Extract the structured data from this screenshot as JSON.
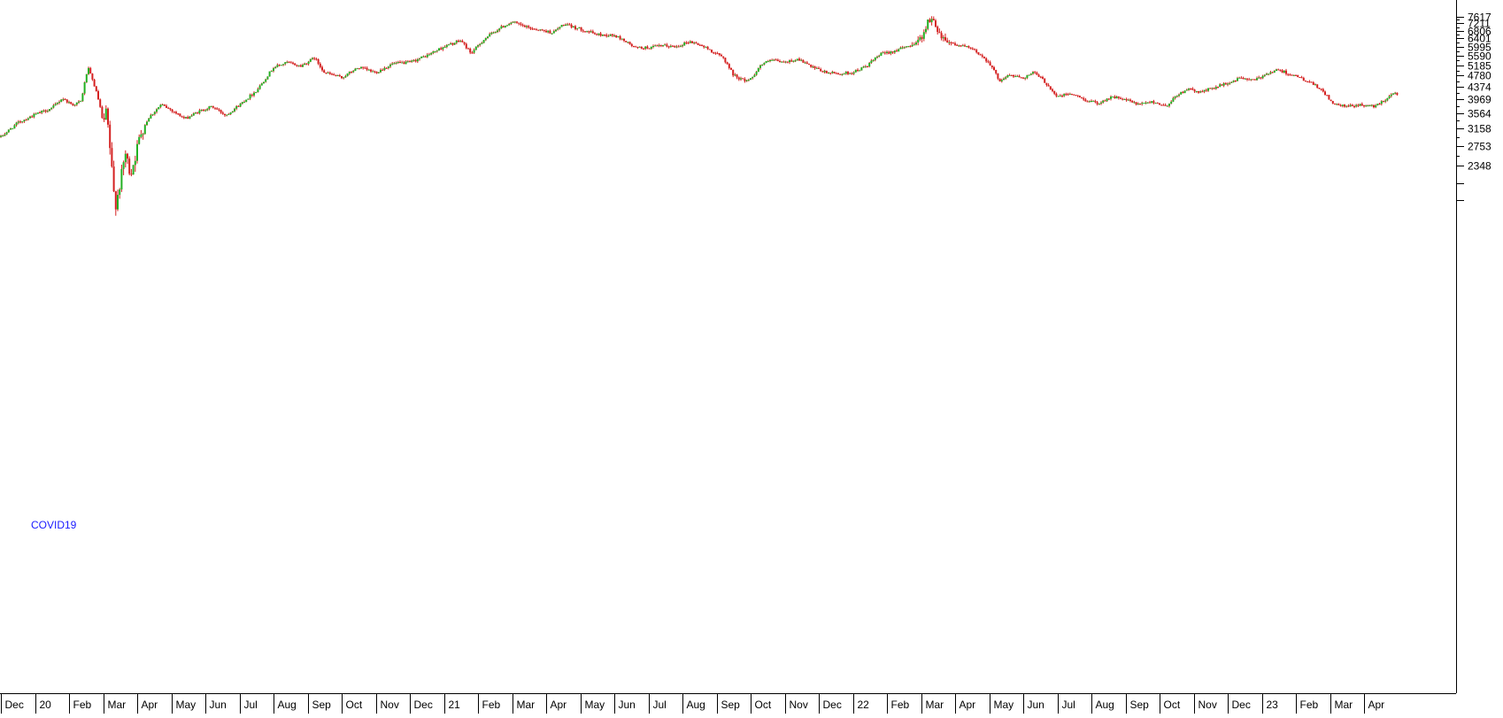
{
  "chart_data": {
    "type": "candlestick",
    "x_axis_labels": [
      "Dec",
      "20",
      "Feb",
      "Mar",
      "Apr",
      "May",
      "Jun",
      "Jul",
      "Aug",
      "Sep",
      "Oct",
      "Nov",
      "Dec",
      "21",
      "Feb",
      "Mar",
      "Apr",
      "May",
      "Jun",
      "Jul",
      "Aug",
      "Sep",
      "Oct",
      "Nov",
      "Dec",
      "22",
      "Feb",
      "Mar",
      "Apr",
      "May",
      "Jun",
      "Jul",
      "Aug",
      "Sep",
      "Oct",
      "Nov",
      "Dec",
      "23",
      "Feb",
      "Mar",
      "Apr"
    ],
    "y_ticks": [
      7617,
      7211,
      6806,
      6401,
      5995,
      5590,
      5185,
      4780,
      4374,
      3969,
      3564,
      3158,
      2753,
      2348
    ],
    "annotation": "COVID19",
    "colors": {
      "up": "#22b022",
      "down": "#d42020",
      "axis": "#000000",
      "annotation": "#1a1aff"
    },
    "series": [
      {
        "t": 0,
        "v": 2950
      },
      {
        "t": 0.5,
        "v": 3300
      },
      {
        "t": 1,
        "v": 3520
      },
      {
        "t": 1.5,
        "v": 3700
      },
      {
        "t": 1.8,
        "v": 4000
      },
      {
        "t": 2.1,
        "v": 3800
      },
      {
        "t": 2.35,
        "v": 3900
      },
      {
        "t": 2.55,
        "v": 5100
      },
      {
        "t": 2.75,
        "v": 4400
      },
      {
        "t": 2.9,
        "v": 3800
      },
      {
        "t": 3.0,
        "v": 3250
      },
      {
        "t": 3.1,
        "v": 3600
      },
      {
        "t": 3.2,
        "v": 2700
      },
      {
        "t": 3.35,
        "v": 1700
      },
      {
        "t": 3.5,
        "v": 2050
      },
      {
        "t": 3.65,
        "v": 2600
      },
      {
        "t": 3.8,
        "v": 2200
      },
      {
        "t": 3.95,
        "v": 2550
      },
      {
        "t": 4.1,
        "v": 3050
      },
      {
        "t": 4.35,
        "v": 3450
      },
      {
        "t": 4.7,
        "v": 3800
      },
      {
        "t": 5.0,
        "v": 3650
      },
      {
        "t": 5.4,
        "v": 3400
      },
      {
        "t": 5.8,
        "v": 3600
      },
      {
        "t": 6.2,
        "v": 3750
      },
      {
        "t": 6.6,
        "v": 3500
      },
      {
        "t": 7.0,
        "v": 3800
      },
      {
        "t": 7.5,
        "v": 4250
      },
      {
        "t": 8.0,
        "v": 5100
      },
      {
        "t": 8.4,
        "v": 5300
      },
      {
        "t": 8.8,
        "v": 5150
      },
      {
        "t": 9.2,
        "v": 5500
      },
      {
        "t": 9.5,
        "v": 4900
      },
      {
        "t": 10.0,
        "v": 4700
      },
      {
        "t": 10.5,
        "v": 5100
      },
      {
        "t": 11.0,
        "v": 4900
      },
      {
        "t": 11.5,
        "v": 5250
      },
      {
        "t": 12.0,
        "v": 5300
      },
      {
        "t": 12.5,
        "v": 5600
      },
      {
        "t": 13.0,
        "v": 6000
      },
      {
        "t": 13.5,
        "v": 6300
      },
      {
        "t": 13.8,
        "v": 5700
      },
      {
        "t": 14.2,
        "v": 6400
      },
      {
        "t": 14.6,
        "v": 6900
      },
      {
        "t": 15.0,
        "v": 7300
      },
      {
        "t": 15.4,
        "v": 7000
      },
      {
        "t": 15.8,
        "v": 6850
      },
      {
        "t": 16.2,
        "v": 6700
      },
      {
        "t": 16.5,
        "v": 7150
      },
      {
        "t": 17.0,
        "v": 6900
      },
      {
        "t": 17.5,
        "v": 6600
      },
      {
        "t": 18.0,
        "v": 6550
      },
      {
        "t": 18.3,
        "v": 6300
      },
      {
        "t": 18.6,
        "v": 5950
      },
      {
        "t": 19.0,
        "v": 5950
      },
      {
        "t": 19.4,
        "v": 6050
      },
      {
        "t": 19.8,
        "v": 6000
      },
      {
        "t": 20.2,
        "v": 6250
      },
      {
        "t": 20.5,
        "v": 6100
      },
      {
        "t": 20.8,
        "v": 5850
      },
      {
        "t": 21.2,
        "v": 5500
      },
      {
        "t": 21.5,
        "v": 4800
      },
      {
        "t": 21.8,
        "v": 4600
      },
      {
        "t": 22.0,
        "v": 4650
      },
      {
        "t": 22.3,
        "v": 5200
      },
      {
        "t": 22.6,
        "v": 5400
      },
      {
        "t": 23.0,
        "v": 5300
      },
      {
        "t": 23.4,
        "v": 5450
      },
      {
        "t": 23.8,
        "v": 5100
      },
      {
        "t": 24.2,
        "v": 4900
      },
      {
        "t": 24.6,
        "v": 4850
      },
      {
        "t": 25.0,
        "v": 4900
      },
      {
        "t": 25.4,
        "v": 5150
      },
      {
        "t": 25.8,
        "v": 5650
      },
      {
        "t": 26.2,
        "v": 5800
      },
      {
        "t": 26.6,
        "v": 6000
      },
      {
        "t": 27.0,
        "v": 6400
      },
      {
        "t": 27.2,
        "v": 7300
      },
      {
        "t": 27.35,
        "v": 7400
      },
      {
        "t": 27.6,
        "v": 6500
      },
      {
        "t": 28.0,
        "v": 6100
      },
      {
        "t": 28.3,
        "v": 6000
      },
      {
        "t": 28.6,
        "v": 5800
      },
      {
        "t": 29.0,
        "v": 5300
      },
      {
        "t": 29.3,
        "v": 4600
      },
      {
        "t": 29.6,
        "v": 4800
      },
      {
        "t": 30.0,
        "v": 4700
      },
      {
        "t": 30.3,
        "v": 4900
      },
      {
        "t": 30.6,
        "v": 4600
      },
      {
        "t": 31.0,
        "v": 4050
      },
      {
        "t": 31.4,
        "v": 4150
      },
      {
        "t": 31.8,
        "v": 3950
      },
      {
        "t": 32.2,
        "v": 3850
      },
      {
        "t": 32.6,
        "v": 4050
      },
      {
        "t": 33.0,
        "v": 3950
      },
      {
        "t": 33.4,
        "v": 3800
      },
      {
        "t": 33.8,
        "v": 3900
      },
      {
        "t": 34.2,
        "v": 3750
      },
      {
        "t": 34.4,
        "v": 4000
      },
      {
        "t": 34.8,
        "v": 4300
      },
      {
        "t": 35.2,
        "v": 4200
      },
      {
        "t": 35.6,
        "v": 4350
      },
      {
        "t": 36.0,
        "v": 4500
      },
      {
        "t": 36.4,
        "v": 4700
      },
      {
        "t": 36.8,
        "v": 4600
      },
      {
        "t": 37.2,
        "v": 4900
      },
      {
        "t": 37.5,
        "v": 5000
      },
      {
        "t": 37.8,
        "v": 4850
      },
      {
        "t": 38.2,
        "v": 4650
      },
      {
        "t": 38.6,
        "v": 4400
      },
      {
        "t": 38.9,
        "v": 4100
      },
      {
        "t": 39.1,
        "v": 3800
      },
      {
        "t": 39.5,
        "v": 3750
      },
      {
        "t": 39.9,
        "v": 3800
      },
      {
        "t": 40.3,
        "v": 3750
      },
      {
        "t": 40.6,
        "v": 3950
      },
      {
        "t": 40.9,
        "v": 4200
      },
      {
        "t": 41.2,
        "v": 4000
      }
    ]
  }
}
